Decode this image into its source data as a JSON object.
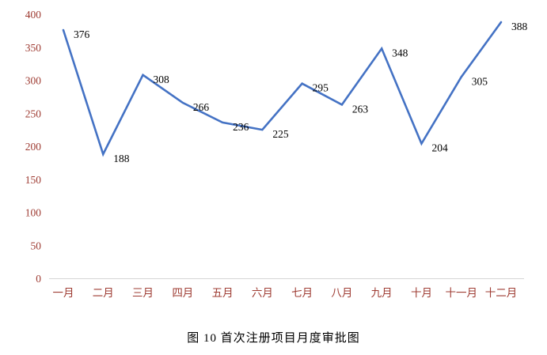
{
  "chart_data": {
    "type": "line",
    "title": "图 10  首次注册项目月度审批图",
    "categories": [
      "一月",
      "二月",
      "三月",
      "四月",
      "五月",
      "六月",
      "七月",
      "八月",
      "九月",
      "十月",
      "十一月",
      "十二月"
    ],
    "values": [
      376,
      188,
      308,
      266,
      236,
      225,
      295,
      263,
      348,
      204,
      305,
      388
    ],
    "xlabel": "",
    "ylabel": "",
    "ylim": [
      0,
      400
    ],
    "yticks": [
      0,
      50,
      100,
      150,
      200,
      250,
      300,
      350,
      400
    ],
    "grid": false,
    "legend": "none",
    "line_color": "#4472C4",
    "axis_line_color": "#d6d6d6",
    "axis_label_color": "#9e3b32",
    "data_label_color": "#000000"
  },
  "caption": "图 10  首次注册项目月度审批图"
}
